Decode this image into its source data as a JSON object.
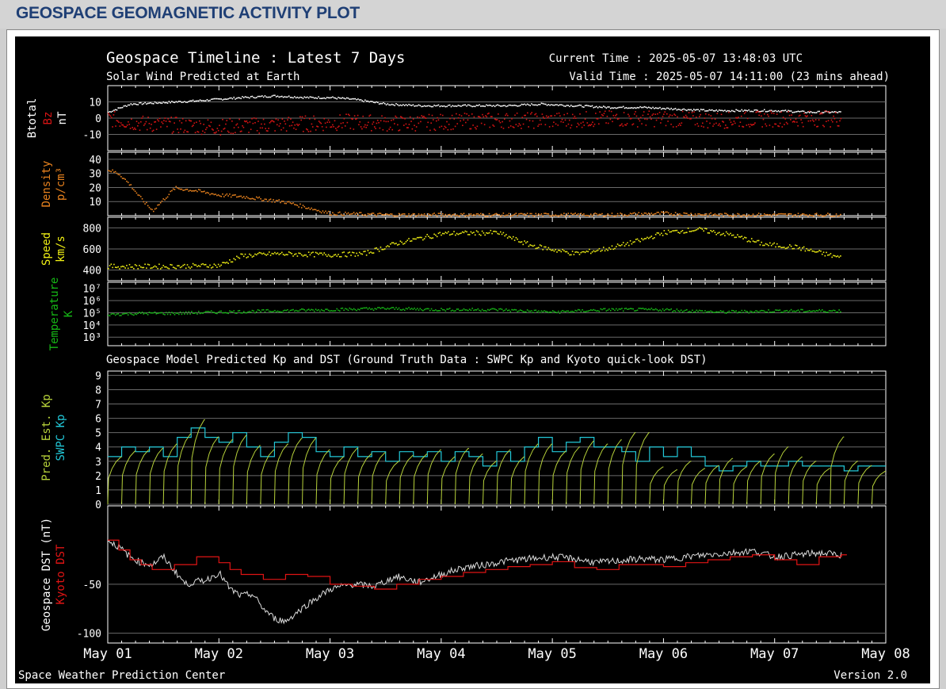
{
  "page": {
    "heading": "GEOSPACE GEOMAGNETIC ACTIVITY PLOT"
  },
  "plot": {
    "title": "Geospace Timeline : Latest 7 Days",
    "subtitle": "Solar Wind Predicted at Earth",
    "current_time": "Current Time : 2025-05-07 13:48:03 UTC",
    "valid_time": "Valid Time : 2025-05-07 14:11:00 (23 mins ahead)",
    "model_title": "Geospace Model Predicted Kp and DST (Ground Truth Data : SWPC Kp and Kyoto quick-look DST)",
    "footer_left": "Space Weather Prediction Center",
    "footer_right": "Version 2.0"
  },
  "colors": {
    "btotal": "#ffffff",
    "bz": "#d81414",
    "density": "#e8821e",
    "speed": "#f2f214",
    "temperature": "#16b816",
    "pred_kp": "#b7d23a",
    "swpc_kp": "#22c8d8",
    "geospace_dst": "#dcdcdc",
    "kyoto_dst": "#e01414",
    "grid": "#6a6a6a"
  },
  "chart_data": [
    {
      "type": "scatter",
      "id": "mag",
      "ylabels": [
        {
          "text": "Btotal",
          "color": "#ffffff"
        },
        {
          "text": "Bz",
          "color": "#d81414"
        },
        {
          "text": "nT",
          "color": "#ffffff"
        }
      ],
      "yticks": [
        {
          "v": 10,
          "label": "10"
        },
        {
          "v": 0,
          "label": "0"
        },
        {
          "v": -10,
          "label": "-10"
        }
      ],
      "ylim": [
        -20,
        20
      ],
      "series": [
        {
          "key": "btotal",
          "x": [
            0,
            0.2,
            0.5,
            0.8,
            1.0,
            1.2,
            1.5,
            1.8,
            2.0,
            2.2,
            2.5,
            2.8,
            3.0,
            3.3,
            3.6,
            3.9,
            4.2,
            4.5,
            4.8,
            5.1,
            5.4,
            5.7,
            6.0,
            6.3,
            6.6
          ],
          "y": [
            4,
            9,
            10,
            11,
            12,
            13,
            14,
            13,
            13,
            12,
            9,
            8,
            8,
            8,
            8,
            9,
            8,
            7,
            7,
            6,
            5,
            5,
            5,
            4,
            4
          ]
        },
        {
          "key": "bz",
          "x": [
            0,
            0.3,
            0.6,
            1.0,
            1.4,
            1.8,
            2.2,
            2.6,
            3.0,
            3.5,
            4.0,
            4.5,
            5.0,
            5.5,
            6.0,
            6.6
          ],
          "y": [
            0,
            -3,
            -4,
            -5,
            -4,
            -3,
            -2,
            -3,
            -2,
            -1,
            -1,
            0,
            0,
            -1,
            0,
            0
          ]
        }
      ]
    },
    {
      "type": "scatter",
      "id": "density",
      "ylabels": [
        {
          "text": "Density",
          "color": "#e8821e"
        },
        {
          "text": "p/cm³",
          "color": "#e8821e"
        }
      ],
      "yticks": [
        {
          "v": 40,
          "label": "40"
        },
        {
          "v": 30,
          "label": "30"
        },
        {
          "v": 20,
          "label": "20"
        },
        {
          "v": 10,
          "label": "10"
        }
      ],
      "ylim": [
        0,
        45
      ],
      "series": [
        {
          "key": "density",
          "x": [
            0,
            0.1,
            0.2,
            0.3,
            0.4,
            0.6,
            0.8,
            1.0,
            1.2,
            1.4,
            1.6,
            1.8,
            2.0,
            2.5,
            3.0,
            3.5,
            4.0,
            4.5,
            5.0,
            5.5,
            6.0,
            6.6
          ],
          "y": [
            33,
            30,
            22,
            12,
            4,
            20,
            18,
            15,
            14,
            12,
            10,
            6,
            2,
            1,
            1,
            1,
            1,
            1,
            2,
            1,
            1,
            1
          ]
        }
      ]
    },
    {
      "type": "scatter",
      "id": "speed",
      "ylabels": [
        {
          "text": "Speed",
          "color": "#f2f214"
        },
        {
          "text": "km/s",
          "color": "#f2f214"
        }
      ],
      "yticks": [
        {
          "v": 800,
          "label": "800"
        },
        {
          "v": 600,
          "label": "600"
        },
        {
          "v": 400,
          "label": "400"
        }
      ],
      "ylim": [
        300,
        900
      ],
      "series": [
        {
          "key": "speed",
          "x": [
            0,
            0.5,
            1.0,
            1.2,
            1.5,
            2.0,
            2.3,
            2.6,
            3.0,
            3.5,
            3.8,
            4.2,
            4.5,
            4.8,
            5.0,
            5.3,
            5.6,
            5.9,
            6.2,
            6.6
          ],
          "y": [
            440,
            440,
            450,
            540,
            560,
            550,
            560,
            660,
            750,
            760,
            640,
            560,
            610,
            690,
            760,
            790,
            740,
            650,
            620,
            520
          ]
        }
      ]
    },
    {
      "type": "scatter",
      "id": "temperature",
      "ylabels": [
        {
          "text": "Temperature",
          "color": "#16b816"
        },
        {
          "text": "K",
          "color": "#16b816"
        }
      ],
      "yticks": [
        {
          "v": 7,
          "label": "10⁷"
        },
        {
          "v": 6,
          "label": "10⁶"
        },
        {
          "v": 5,
          "label": "10⁵"
        },
        {
          "v": 4,
          "label": "10⁴"
        },
        {
          "v": 3,
          "label": "10³"
        }
      ],
      "ylim": [
        2.3,
        7.5
      ],
      "log_scale": true,
      "series": [
        {
          "key": "temperature",
          "x": [
            0,
            0.3,
            0.6,
            1.0,
            1.5,
            2.0,
            2.5,
            3.0,
            3.5,
            4.0,
            4.5,
            5.0,
            5.5,
            6.0,
            6.6
          ],
          "y": [
            4.9,
            5.0,
            5.0,
            5.1,
            5.2,
            5.3,
            5.4,
            5.3,
            5.3,
            5.1,
            5.3,
            5.3,
            5.1,
            5.2,
            5.2
          ]
        }
      ]
    },
    {
      "type": "line",
      "id": "kp",
      "ylabels": [
        {
          "text": "Pred. Est. Kp",
          "color": "#b7d23a"
        },
        {
          "text": "SWPC Kp",
          "color": "#22c8d8"
        }
      ],
      "yticks": [
        {
          "v": 9,
          "label": "9"
        },
        {
          "v": 8,
          "label": "8"
        },
        {
          "v": 7,
          "label": "7"
        },
        {
          "v": 6,
          "label": "6"
        },
        {
          "v": 5,
          "label": "5"
        },
        {
          "v": 4,
          "label": "4"
        },
        {
          "v": 3,
          "label": "3"
        },
        {
          "v": 2,
          "label": "2"
        },
        {
          "v": 1,
          "label": "1"
        },
        {
          "v": 0,
          "label": "0"
        }
      ],
      "ylim": [
        0,
        9.3
      ],
      "series": [
        {
          "key": "swpc_kp",
          "values": [
            3.33,
            4,
            3.67,
            4,
            3.33,
            4.67,
            5.33,
            4.67,
            4.33,
            5,
            4,
            3.33,
            4.33,
            5,
            4.67,
            3.67,
            3.33,
            4,
            3.33,
            3.67,
            3,
            3.67,
            3.33,
            3.67,
            3,
            3.67,
            3.33,
            2.67,
            3.67,
            3,
            4,
            4.67,
            3.67,
            4.33,
            4.67,
            4,
            4,
            3.67,
            3,
            4,
            3.33,
            4,
            3.33,
            2.67,
            2.33,
            2.67,
            3,
            2.67,
            2.67,
            3,
            2.67,
            2.67,
            2.67,
            2.33,
            2.67,
            2.67
          ]
        },
        {
          "key": "pred_kp",
          "values": [
            3.3,
            3.7,
            3.8,
            3.9,
            4.2,
            4.9,
            5.9,
            4.7,
            4.5,
            4.8,
            4.1,
            3.8,
            4.2,
            4.6,
            4.6,
            3.8,
            3.3,
            3.9,
            3.5,
            3.6,
            3,
            3.4,
            3.5,
            3.8,
            3.3,
            3.9,
            3.5,
            3,
            3.8,
            3.3,
            4.2,
            4.2,
            3.7,
            4,
            4.4,
            4.2,
            4.5,
            5,
            5,
            2.6,
            2.4,
            3,
            2.5,
            2.7,
            3.2,
            2.6,
            3,
            3.5,
            4,
            3.3,
            3,
            2.5,
            4.7,
            3,
            2.7,
            2.3
          ]
        }
      ]
    },
    {
      "type": "line",
      "id": "dst",
      "ylabels": [
        {
          "text": "Geospace DST (nT)",
          "color": "#ffffff"
        },
        {
          "text": "Kyoto DST",
          "color": "#e01414"
        }
      ],
      "yticks": [
        {
          "v": -50,
          "label": "-50"
        },
        {
          "v": -100,
          "label": "-100"
        }
      ],
      "ylim": [
        -110,
        30
      ],
      "x_range": [
        0,
        7
      ],
      "xticks": [
        "May 01",
        "May 02",
        "May 03",
        "May 04",
        "May 05",
        "May 06",
        "May 07",
        "May 08"
      ],
      "series": [
        {
          "key": "geospace_dst",
          "x": [
            0,
            0.1,
            0.2,
            0.3,
            0.4,
            0.5,
            0.7,
            0.9,
            1.0,
            1.1,
            1.2,
            1.3,
            1.4,
            1.5,
            1.6,
            1.8,
            2.0,
            2.2,
            2.4,
            2.6,
            2.8,
            3.0,
            3.2,
            3.4,
            3.6,
            3.8,
            4.0,
            4.2,
            4.4,
            4.6,
            4.8,
            5.0,
            5.2,
            5.4,
            5.6,
            5.8,
            6.0,
            6.2,
            6.4,
            6.6
          ],
          "y": [
            -5,
            -12,
            -22,
            -28,
            -30,
            -22,
            -50,
            -45,
            -38,
            -55,
            -62,
            -60,
            -75,
            -85,
            -88,
            -70,
            -55,
            -50,
            -52,
            -42,
            -48,
            -40,
            -33,
            -30,
            -26,
            -24,
            -22,
            -24,
            -28,
            -26,
            -24,
            -25,
            -22,
            -20,
            -18,
            -16,
            -22,
            -20,
            -18,
            -20
          ]
        },
        {
          "key": "kyoto_dst",
          "x": [
            0,
            0.1,
            0.2,
            0.3,
            0.4,
            0.6,
            0.8,
            1.0,
            1.1,
            1.2,
            1.4,
            1.6,
            1.8,
            2.0,
            2.2,
            2.4,
            2.6,
            2.8,
            3.0,
            3.2,
            3.4,
            3.6,
            3.8,
            4.0,
            4.2,
            4.4,
            4.6,
            4.8,
            5.0,
            5.2,
            5.4,
            5.6,
            5.8,
            6.0,
            6.2,
            6.4,
            6.6
          ],
          "y": [
            -5,
            -15,
            -25,
            -30,
            -35,
            -30,
            -22,
            -28,
            -35,
            -40,
            -45,
            -40,
            -42,
            -50,
            -52,
            -55,
            -50,
            -45,
            -42,
            -38,
            -35,
            -32,
            -30,
            -27,
            -33,
            -35,
            -30,
            -30,
            -32,
            -28,
            -25,
            -22,
            -20,
            -25,
            -30,
            -22,
            -20
          ]
        }
      ]
    }
  ]
}
